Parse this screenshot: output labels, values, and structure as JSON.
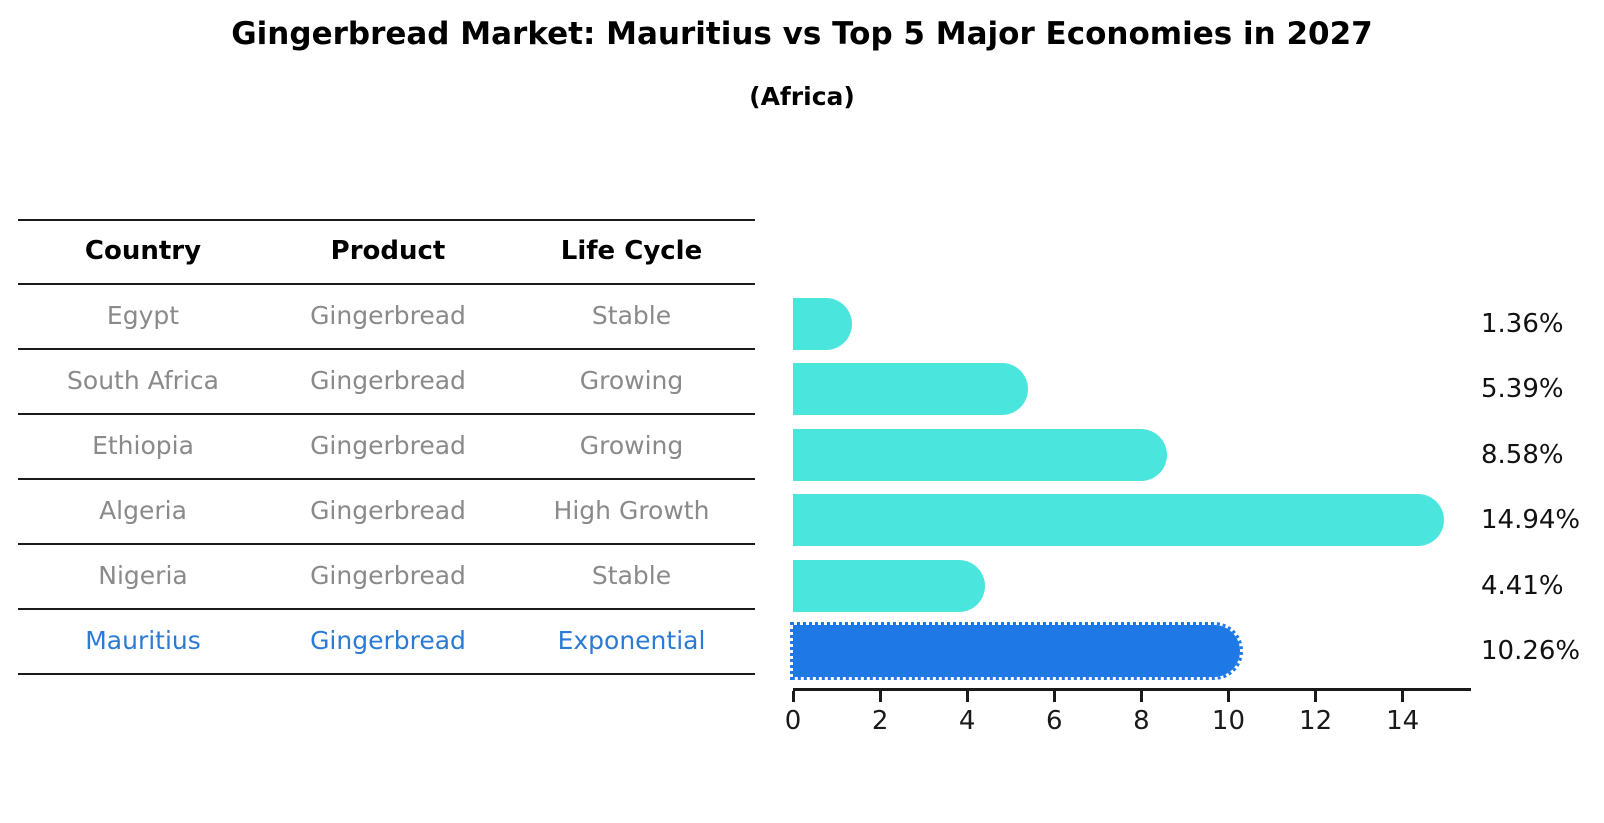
{
  "title": "Gingerbread Market: Mauritius vs Top 5 Major Economies in 2027",
  "subtitle": "(Africa)",
  "table": {
    "headers": [
      "Country",
      "Product",
      "Life Cycle"
    ],
    "rows": [
      {
        "country": "Egypt",
        "product": "Gingerbread",
        "life_cycle": "Stable",
        "highlight": false
      },
      {
        "country": "South Africa",
        "product": "Gingerbread",
        "life_cycle": "Growing",
        "highlight": false
      },
      {
        "country": "Ethiopia",
        "product": "Gingerbread",
        "life_cycle": "Growing",
        "highlight": false
      },
      {
        "country": "Algeria",
        "product": "Gingerbread",
        "life_cycle": "High Growth",
        "highlight": false
      },
      {
        "country": "Nigeria",
        "product": "Gingerbread",
        "life_cycle": "Stable",
        "highlight": false
      },
      {
        "country": "Mauritius",
        "product": "Gingerbread",
        "life_cycle": "Exponential",
        "highlight": true
      }
    ]
  },
  "chart_data": {
    "type": "bar",
    "orientation": "horizontal",
    "title": "Gingerbread Market: Mauritius vs Top 5 Major Economies in 2027",
    "subtitle": "(Africa)",
    "categories": [
      "Egypt",
      "South Africa",
      "Ethiopia",
      "Algeria",
      "Nigeria",
      "Mauritius"
    ],
    "values": [
      1.36,
      5.39,
      8.58,
      14.94,
      4.41,
      10.26
    ],
    "value_labels": [
      "1.36%",
      "5.39%",
      "8.58%",
      "14.94%",
      "4.41%",
      "10.26%"
    ],
    "xlabel": "",
    "ylabel": "",
    "xlim": [
      0,
      15.5
    ],
    "x_ticks": [
      "0",
      "2",
      "4",
      "6",
      "8",
      "10",
      "12",
      "14"
    ],
    "grid": false,
    "legend": null,
    "highlight_index": 5,
    "colors": {
      "bar": "#4ae6de",
      "highlight_bar": "#1e78e6",
      "highlight_text": "#2b7bd4",
      "table_text": "#8a8a8a",
      "header_text": "#000000",
      "axis": "#1a1a1a"
    }
  }
}
